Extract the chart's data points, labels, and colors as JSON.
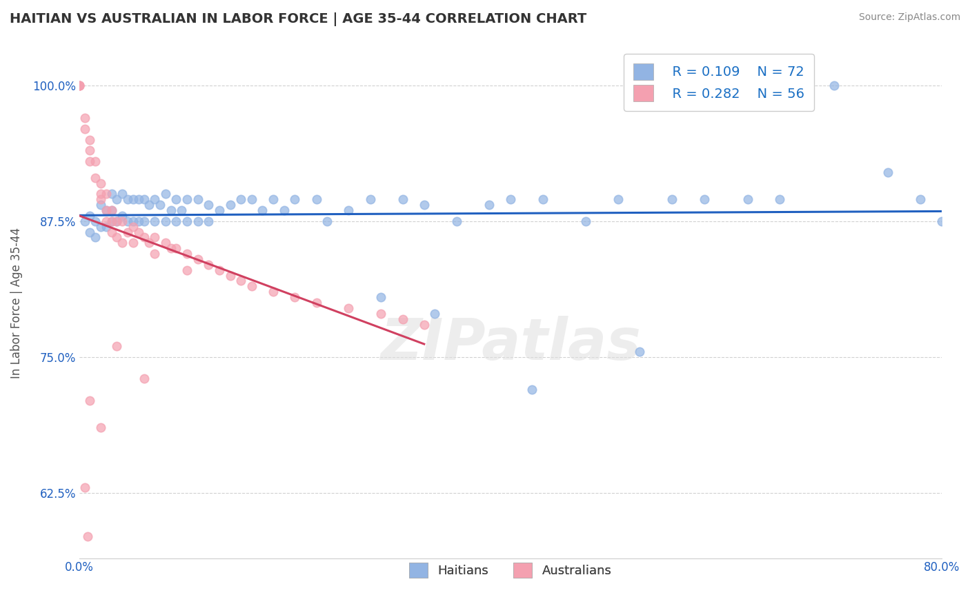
{
  "title": "HAITIAN VS AUSTRALIAN IN LABOR FORCE | AGE 35-44 CORRELATION CHART",
  "source": "Source: ZipAtlas.com",
  "ylabel": "In Labor Force | Age 35-44",
  "xlim": [
    0.0,
    0.8
  ],
  "ylim": [
    0.565,
    1.035
  ],
  "ytick_values": [
    0.625,
    0.75,
    0.875,
    1.0
  ],
  "ytick_labels": [
    "62.5%",
    "75.0%",
    "87.5%",
    "100.0%"
  ],
  "xtick_values": [
    0.0,
    0.8
  ],
  "xtick_labels": [
    "0.0%",
    "80.0%"
  ],
  "legend_r1": "R = 0.109",
  "legend_n1": "N = 72",
  "legend_r2": "R = 0.282",
  "legend_n2": "N = 56",
  "haitian_color": "#92b4e3",
  "australian_color": "#f4a0b0",
  "haitian_line_color": "#2060c0",
  "australian_line_color": "#d04060",
  "background_color": "#ffffff",
  "grid_color": "#cccccc",
  "watermark": "ZIPatlas",
  "haitian_x": [
    0.005,
    0.01,
    0.01,
    0.015,
    0.015,
    0.02,
    0.02,
    0.025,
    0.025,
    0.03,
    0.03,
    0.03,
    0.035,
    0.035,
    0.04,
    0.04,
    0.045,
    0.045,
    0.05,
    0.05,
    0.055,
    0.055,
    0.06,
    0.06,
    0.065,
    0.07,
    0.07,
    0.075,
    0.08,
    0.08,
    0.085,
    0.09,
    0.09,
    0.095,
    0.1,
    0.1,
    0.11,
    0.11,
    0.12,
    0.12,
    0.13,
    0.14,
    0.15,
    0.16,
    0.17,
    0.18,
    0.19,
    0.2,
    0.22,
    0.23,
    0.25,
    0.27,
    0.3,
    0.32,
    0.35,
    0.38,
    0.4,
    0.43,
    0.47,
    0.5,
    0.55,
    0.58,
    0.62,
    0.65,
    0.7,
    0.75,
    0.78,
    0.8,
    0.28,
    0.33,
    0.42,
    0.52
  ],
  "haitian_y": [
    0.875,
    0.88,
    0.865,
    0.875,
    0.86,
    0.89,
    0.87,
    0.885,
    0.87,
    0.9,
    0.885,
    0.875,
    0.895,
    0.875,
    0.9,
    0.88,
    0.895,
    0.875,
    0.895,
    0.875,
    0.895,
    0.875,
    0.895,
    0.875,
    0.89,
    0.895,
    0.875,
    0.89,
    0.9,
    0.875,
    0.885,
    0.895,
    0.875,
    0.885,
    0.895,
    0.875,
    0.895,
    0.875,
    0.89,
    0.875,
    0.885,
    0.89,
    0.895,
    0.895,
    0.885,
    0.895,
    0.885,
    0.895,
    0.895,
    0.875,
    0.885,
    0.895,
    0.895,
    0.89,
    0.875,
    0.89,
    0.895,
    0.895,
    0.875,
    0.895,
    0.895,
    0.895,
    0.895,
    0.895,
    1.0,
    0.92,
    0.895,
    0.875,
    0.805,
    0.79,
    0.72,
    0.755
  ],
  "australian_x": [
    0.0,
    0.0,
    0.0,
    0.0,
    0.005,
    0.005,
    0.01,
    0.01,
    0.01,
    0.015,
    0.015,
    0.02,
    0.02,
    0.02,
    0.025,
    0.025,
    0.025,
    0.03,
    0.03,
    0.03,
    0.035,
    0.035,
    0.04,
    0.04,
    0.045,
    0.05,
    0.05,
    0.055,
    0.06,
    0.065,
    0.07,
    0.07,
    0.08,
    0.085,
    0.09,
    0.1,
    0.1,
    0.11,
    0.12,
    0.13,
    0.14,
    0.15,
    0.16,
    0.18,
    0.2,
    0.22,
    0.25,
    0.28,
    0.3,
    0.32,
    0.06,
    0.035,
    0.02,
    0.01,
    0.005,
    0.008
  ],
  "australian_y": [
    1.0,
    1.0,
    1.0,
    1.0,
    0.97,
    0.96,
    0.95,
    0.94,
    0.93,
    0.93,
    0.915,
    0.91,
    0.9,
    0.895,
    0.9,
    0.885,
    0.875,
    0.885,
    0.875,
    0.865,
    0.875,
    0.86,
    0.875,
    0.855,
    0.865,
    0.87,
    0.855,
    0.865,
    0.86,
    0.855,
    0.86,
    0.845,
    0.855,
    0.85,
    0.85,
    0.845,
    0.83,
    0.84,
    0.835,
    0.83,
    0.825,
    0.82,
    0.815,
    0.81,
    0.805,
    0.8,
    0.795,
    0.79,
    0.785,
    0.78,
    0.73,
    0.76,
    0.685,
    0.71,
    0.63,
    0.585
  ]
}
